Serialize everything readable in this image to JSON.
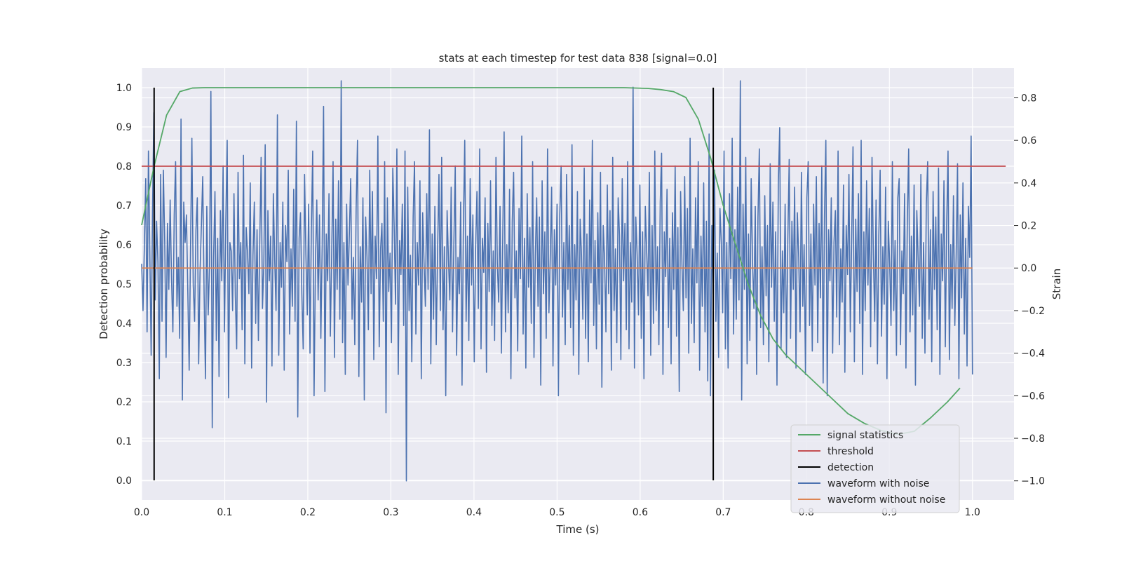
{
  "chart_data": {
    "type": "line",
    "title": "stats at each timestep for test data 838 [signal=0.0]",
    "xlabel": "Time (s)",
    "ylabel_left": "Detection probability",
    "ylabel_right": "Strain",
    "xlim": [
      0.0,
      1.05
    ],
    "ylim_left": [
      -0.05,
      1.05
    ],
    "ylim_right": [
      -1.09,
      0.94
    ],
    "xticks": [
      0.0,
      0.1,
      0.2,
      0.3,
      0.4,
      0.5,
      0.6,
      0.7,
      0.8,
      0.9,
      1.0
    ],
    "xtick_labels": [
      "0.0",
      "0.1",
      "0.2",
      "0.3",
      "0.4",
      "0.5",
      "0.6",
      "0.7",
      "0.8",
      "0.9",
      "1.0"
    ],
    "yticks_left": [
      0.0,
      0.1,
      0.2,
      0.3,
      0.4,
      0.5,
      0.6,
      0.7,
      0.8,
      0.9,
      1.0
    ],
    "ytick_labels_left": [
      "0.0",
      "0.1",
      "0.2",
      "0.3",
      "0.4",
      "0.5",
      "0.6",
      "0.7",
      "0.8",
      "0.9",
      "1.0"
    ],
    "yticks_right": [
      -1.0,
      -0.8,
      -0.6,
      -0.4,
      -0.2,
      0.0,
      0.2,
      0.4,
      0.6,
      0.8
    ],
    "ytick_labels_right": [
      "−1.0",
      "−0.8",
      "−0.6",
      "−0.4",
      "−0.2",
      "0.0",
      "0.2",
      "0.4",
      "0.6",
      "0.8"
    ],
    "grid": true,
    "legend_position": "bottom-right",
    "series": [
      {
        "name": "signal statistics",
        "axis": "left",
        "color": "#55a868",
        "x": [
          0.0,
          0.015,
          0.03,
          0.046,
          0.061,
          0.076,
          0.1,
          0.2,
          0.3,
          0.4,
          0.5,
          0.58,
          0.61,
          0.625,
          0.64,
          0.655,
          0.67,
          0.685,
          0.7,
          0.715,
          0.73,
          0.745,
          0.76,
          0.775,
          0.79,
          0.81,
          0.83,
          0.85,
          0.87,
          0.89,
          0.91,
          0.93,
          0.95,
          0.97,
          0.985
        ],
        "y": [
          0.65,
          0.8,
          0.93,
          0.99,
          0.999,
          1.0,
          1.0,
          1.0,
          1.0,
          1.0,
          1.0,
          1.0,
          0.998,
          0.995,
          0.99,
          0.975,
          0.92,
          0.82,
          0.7,
          0.6,
          0.5,
          0.42,
          0.36,
          0.32,
          0.29,
          0.25,
          0.21,
          0.17,
          0.145,
          0.127,
          0.117,
          0.125,
          0.16,
          0.2,
          0.235
        ]
      },
      {
        "name": "threshold",
        "axis": "left",
        "color": "#c44e52",
        "x": [
          0.0,
          1.04
        ],
        "y": [
          0.8,
          0.8
        ]
      },
      {
        "name": "detection",
        "axis": "left",
        "color": "#000000",
        "segments": [
          {
            "x": 0.015,
            "y0": 0.0,
            "y1": 1.0
          },
          {
            "x": 0.688,
            "y0": 0.0,
            "y1": 1.0
          }
        ]
      },
      {
        "name": "waveform with noise",
        "axis": "right",
        "color": "#4c72b0",
        "x_start": 0.0,
        "x_end": 1.0,
        "y": [
          0.02,
          -0.2,
          0.1,
          0.42,
          -0.3,
          0.55,
          0.08,
          -0.41,
          0.27,
          0.73,
          -0.15,
          0.22,
          0.03,
          -0.52,
          0.44,
          -0.25,
          0.46,
          0.12,
          -0.42,
          0.21,
          -0.1,
          0.32,
          -0.05,
          -0.3,
          0.25,
          0.5,
          -0.18,
          0.05,
          -0.33,
          0.7,
          -0.62,
          0.31,
          0.12,
          0.25,
          -0.11,
          -0.48,
          0.09,
          0.61,
          -0.08,
          -0.25,
          0.18,
          0.33,
          -0.45,
          -0.02,
          0.2,
          0.43,
          -0.12,
          -0.52,
          0.29,
          -0.22,
          0.01,
          0.83,
          -0.75,
          0.05,
          0.36,
          -0.34,
          0.14,
          -0.51,
          0.27,
          -0.06,
          0.48,
          -0.3,
          0.22,
          0.6,
          -0.61,
          0.12,
          0.08,
          -0.2,
          0.35,
          -0.13,
          -0.38,
          0.45,
          -0.05,
          0.12,
          -0.29,
          0.53,
          -0.45,
          0.19,
          0.07,
          -0.12,
          0.4,
          -0.47,
          0.06,
          0.31,
          -0.26,
          0.18,
          -0.34,
          0.12,
          0.52,
          -0.19,
          0.02,
          0.58,
          -0.63,
          0.27,
          -0.06,
          0.15,
          -0.46,
          0.35,
          0.04,
          -0.2,
          0.72,
          -0.41,
          0.12,
          -0.09,
          0.31,
          -0.48,
          0.2,
          0.03,
          0.46,
          -0.31,
          0.09,
          -0.18,
          0.37,
          -0.25,
          0.69,
          -0.7,
          0.14,
          0.26,
          -0.12,
          -0.38,
          0.44,
          0.06,
          -0.22,
          0.3,
          -0.4,
          0.18,
          0.55,
          -0.6,
          0.02,
          0.32,
          -0.15,
          0.25,
          -0.33,
          0.11,
          0.76,
          -0.58,
          0.16,
          -0.06,
          0.35,
          -0.32,
          0.07,
          0.5,
          -0.42,
          0.23,
          -0.1,
          0.41,
          -0.24,
          0.88,
          -0.35,
          0.12,
          -0.5,
          0.3,
          -0.08,
          0.16,
          0.42,
          -0.24,
          0.05,
          -0.36,
          0.28,
          0.6,
          -0.51,
          0.1,
          -0.16,
          0.33,
          -0.62,
          0.24,
          0.05,
          -0.29,
          0.46,
          -0.12,
          0.36,
          -0.43,
          0.15,
          -0.05,
          0.62,
          -0.37,
          0.09,
          0.21,
          -0.25,
          0.5,
          -0.68,
          0.33,
          -0.11,
          0.07,
          -0.35,
          0.47,
          0.2,
          -0.17,
          0.56,
          -0.5,
          0.13,
          -0.03,
          0.3,
          -0.27,
          0.55,
          -1.0,
          0.38,
          -0.2,
          0.06,
          -0.44,
          0.24,
          0.5,
          -0.31,
          0.12,
          -0.08,
          0.41,
          -0.52,
          0.26,
          0.03,
          -0.18,
          0.35,
          -0.1,
          0.65,
          -0.45,
          0.16,
          -0.24,
          0.29,
          -0.36,
          0.08,
          0.44,
          -0.2,
          0.52,
          -0.29,
          0.1,
          -0.6,
          0.27,
          0.04,
          -0.15,
          0.38,
          -0.3,
          0.12,
          0.48,
          -0.41,
          0.05,
          -0.12,
          0.31,
          -0.55,
          0.2,
          0.6,
          -0.25,
          0.15,
          -0.34,
          0.42,
          -0.08,
          0.25,
          -0.44,
          0.09,
          0.36,
          -0.19,
          0.56,
          -0.38,
          0.14,
          -0.02,
          0.33,
          -0.49,
          0.21,
          -0.11,
          0.41,
          -0.27,
          0.08,
          -0.34,
          0.52,
          0.02,
          -0.16,
          0.29,
          -0.4,
          0.15,
          0.64,
          -0.3,
          0.11,
          -0.21,
          0.37,
          -0.52,
          0.22,
          0.45,
          -0.14,
          0.08,
          -0.39,
          0.28,
          -0.05,
          0.62,
          -0.31,
          0.14,
          -0.47,
          0.35,
          -0.09,
          0.19,
          -0.26,
          0.5,
          -0.42,
          0.06,
          0.33,
          -0.18,
          0.24,
          -0.55,
          0.41,
          -0.12,
          0.17,
          -0.33,
          0.56,
          -0.21,
          0.05,
          0.38,
          -0.46,
          0.18,
          -0.08,
          0.3,
          -0.6,
          0.25,
          0.48,
          -0.23,
          0.12,
          -0.36,
          0.44,
          -0.1,
          0.2,
          -0.28,
          0.58,
          -0.41,
          0.11,
          -0.15,
          0.36,
          -0.5,
          0.23,
          0.06,
          -0.24,
          0.47,
          -0.33,
          0.16,
          -0.44,
          0.32,
          -0.07,
          0.6,
          -0.27,
          0.13,
          -0.38,
          0.26,
          -0.17,
          0.45,
          -0.56,
          0.2,
          0.04,
          -0.3,
          0.39,
          -0.12,
          0.27,
          -0.48,
          0.52,
          -0.2,
          0.09,
          -0.35,
          0.33,
          0.15,
          -0.43,
          0.42,
          -0.06,
          0.21,
          -0.29,
          0.5,
          -0.38,
          0.12,
          -0.16,
          0.85,
          -0.47,
          0.24,
          0.06,
          -0.22,
          0.39,
          -0.33,
          0.17,
          -0.52,
          0.29,
          0.08,
          -0.13,
          0.45,
          -0.41,
          0.2,
          -0.26,
          0.55,
          -0.2,
          0.1,
          -0.36,
          0.31,
          0.54,
          -0.5,
          0.17,
          -0.04,
          0.37,
          -0.28,
          0.14,
          -0.45,
          0.26,
          -0.1,
          0.48,
          -0.32,
          0.19,
          -0.58,
          0.36,
          0.02,
          -0.2,
          0.43,
          -0.14,
          0.28,
          -0.4,
          0.61,
          -0.26,
          0.09,
          -0.35,
          0.33,
          -0.07,
          0.5,
          -0.48,
          0.15,
          -0.18,
          0.4,
          -0.3,
          0.22,
          -0.53,
          0.63,
          -0.6,
          0.2,
          -0.12,
          0.46,
          -0.25,
          0.07,
          -0.42,
          0.28,
          0.12,
          -0.21,
          0.55,
          -0.38,
          0.12,
          -0.47,
          0.35,
          -0.05,
          0.61,
          -0.31,
          0.18,
          -0.24,
          0.38,
          -0.15,
          0.88,
          -0.62,
          0.3,
          -0.1,
          0.52,
          -0.45,
          0.16,
          -0.34,
          0.42,
          0.03,
          -0.19,
          0.29,
          -0.5,
          0.24,
          0.56,
          -0.28,
          0.1,
          -0.36,
          0.34,
          -0.13,
          0.2,
          -0.44,
          0.49,
          -0.09,
          0.31,
          -0.25,
          0.17,
          -0.55,
          0.4,
          0.66,
          -0.38,
          0.08,
          -0.21,
          0.3,
          -0.42,
          0.14,
          0.51,
          -0.33,
          0.22,
          -0.1,
          0.38,
          -0.47,
          0.26,
          0.05,
          -0.3,
          0.45,
          -0.18,
          0.11,
          -0.5,
          0.33,
          0.5,
          -0.27,
          0.16,
          -0.39,
          0.3,
          -0.08,
          0.43,
          -0.35,
          0.21,
          -0.14,
          0.48,
          -0.54,
          0.25,
          0.6,
          -0.6,
          0.18,
          -0.06,
          0.33,
          -0.4,
          0.12,
          0.27,
          -0.23,
          0.55,
          -0.36,
          0.09,
          -0.16,
          0.39,
          -0.49,
          0.2,
          -0.03,
          0.44,
          -0.3,
          0.13,
          0.57,
          -0.44,
          0.23,
          -0.11,
          0.35,
          -0.26,
          0.6,
          -0.5,
          0.17,
          -0.2,
          0.41,
          -0.08,
          0.28,
          -0.37,
          0.52,
          0.06,
          -0.25,
          0.32,
          -0.45,
          0.15,
          0.46,
          -0.32,
          0.1,
          -0.17,
          0.38,
          -0.52,
          0.22,
          0.02,
          -0.27,
          0.5,
          -0.2,
          0.13,
          -0.41,
          0.33,
          0.42,
          -0.36,
          0.08,
          -0.12,
          0.35,
          -0.47,
          0.21,
          0.56,
          -0.3,
          0.15,
          -0.22,
          0.39,
          -0.55,
          0.27,
          0.04,
          -0.18,
          0.44,
          -0.33,
          0.12,
          -0.4,
          0.3,
          0.5,
          -0.24,
          0.18,
          -0.44,
          0.36,
          -0.1,
          0.24,
          -0.29,
          0.47,
          -0.5,
          0.16,
          -0.06,
          0.41,
          -0.37,
          0.2,
          0.55,
          -0.43,
          0.11,
          -0.19,
          0.34,
          -0.27,
          0.06,
          0.49,
          -0.52,
          0.25,
          -0.14,
          0.4,
          -0.31,
          0.14,
          -0.46,
          0.29,
          0.05,
          0.62,
          -0.5
        ]
      },
      {
        "name": "waveform without noise",
        "axis": "right",
        "color": "#dd8452",
        "x": [
          0.0,
          1.0
        ],
        "y": [
          0.0,
          0.0
        ]
      }
    ]
  }
}
